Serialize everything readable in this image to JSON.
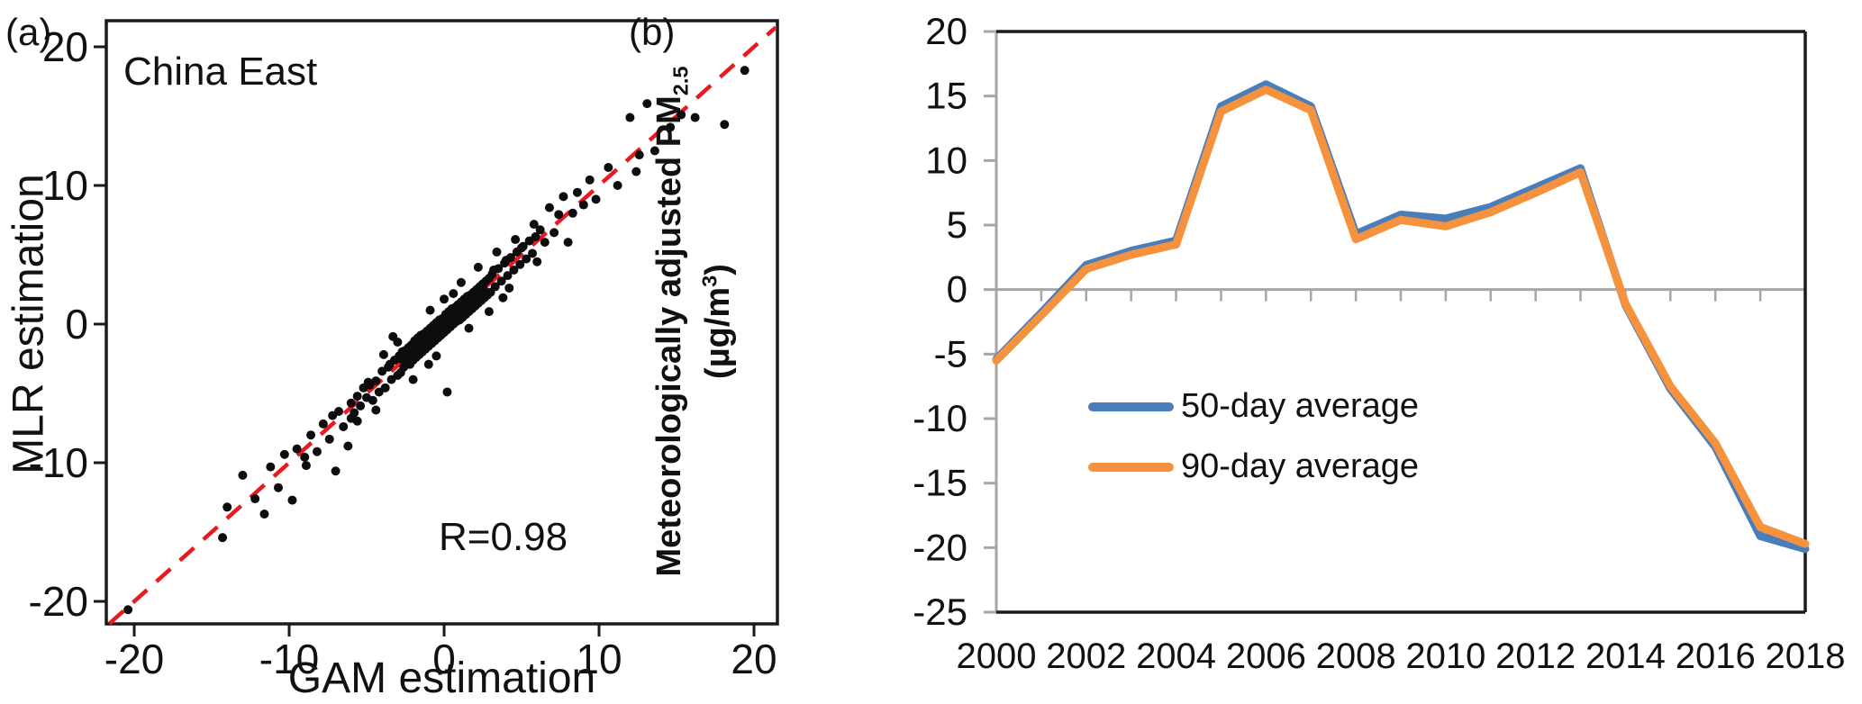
{
  "figure": {
    "panel_a_label": "(a)",
    "panel_b_label": "(b)"
  },
  "colors": {
    "frame_black": "#1a1a1a",
    "axis_gray": "#a6a6a6",
    "identity_red": "#e8191f",
    "series_blue": "#4a7ebb",
    "series_orange": "#f5923e",
    "point_black": "#0d0d0d"
  },
  "chart_data": [
    {
      "type": "scatter",
      "panel": "a",
      "region_label": "China East",
      "annotation_r": "R=0.98",
      "xlabel": "GAM estimation",
      "ylabel": "MLR estimation",
      "xlim": [
        -21.8,
        21.5
      ],
      "ylim": [
        -21.6,
        21.9
      ],
      "x_ticks": [
        -20,
        -10,
        0,
        10,
        20
      ],
      "y_ticks": [
        -20,
        -10,
        0,
        10,
        20
      ],
      "grid": false,
      "identity_line": {
        "style": "dashed",
        "color": "#e8191f",
        "from": -21.6,
        "to": 21.4
      },
      "point_color": "#0d0d0d",
      "points": [
        [
          -6,
          -5.7
        ],
        [
          -5.8,
          -6.4
        ],
        [
          -5.6,
          -5.2
        ],
        [
          -5.4,
          -5.9
        ],
        [
          -5.2,
          -4.6
        ],
        [
          -5,
          -5.3
        ],
        [
          -4.8,
          -4.4
        ],
        [
          -4.6,
          -5.5
        ],
        [
          -4.4,
          -4.1
        ],
        [
          -4.2,
          -4.9
        ],
        [
          -4,
          -3.4
        ],
        [
          -3.8,
          -4.6
        ],
        [
          -3.6,
          -3.1
        ],
        [
          -3.4,
          -4
        ],
        [
          -3.2,
          -2.6
        ],
        [
          -3,
          -3.7
        ],
        [
          -3.5,
          -2.9
        ],
        [
          -4.9,
          -4.2
        ],
        [
          -2.9,
          -2.3
        ],
        [
          -2.8,
          -3.5
        ],
        [
          -2.7,
          -2
        ],
        [
          -2.6,
          -3.1
        ],
        [
          -2.5,
          -1.9
        ],
        [
          -2.4,
          -2.8
        ],
        [
          -2.3,
          -1.7
        ],
        [
          -2.2,
          -2.9
        ],
        [
          -2.1,
          -1.5
        ],
        [
          -2,
          -2.6
        ],
        [
          -1.9,
          -1.2
        ],
        [
          -1.8,
          -2.4
        ],
        [
          -1.7,
          -1
        ],
        [
          -1.6,
          -2.2
        ],
        [
          -1.5,
          -0.8
        ],
        [
          -1.4,
          -2
        ],
        [
          -1.3,
          -0.7
        ],
        [
          -1.2,
          -1.8
        ],
        [
          -1.1,
          -0.5
        ],
        [
          -1,
          -1.6
        ],
        [
          -0.9,
          -0.3
        ],
        [
          -0.8,
          -1.4
        ],
        [
          -0.7,
          -0.1
        ],
        [
          -0.6,
          -1.2
        ],
        [
          -0.5,
          0.1
        ],
        [
          -0.4,
          -1
        ],
        [
          -0.3,
          0.3
        ],
        [
          -0.2,
          -0.8
        ],
        [
          -0.1,
          0.4
        ],
        [
          0,
          -0.6
        ],
        [
          0.1,
          0.7
        ],
        [
          0.2,
          -0.4
        ],
        [
          0.3,
          0.9
        ],
        [
          0.4,
          -0.2
        ],
        [
          0.5,
          1.1
        ],
        [
          0.6,
          0
        ],
        [
          0.7,
          1.2
        ],
        [
          0.8,
          0.2
        ],
        [
          0.9,
          1.4
        ],
        [
          1,
          0.3
        ],
        [
          1.1,
          1.6
        ],
        [
          1.2,
          0.5
        ],
        [
          1.3,
          1.8
        ],
        [
          1.4,
          0.7
        ],
        [
          1.5,
          2
        ],
        [
          1.6,
          0.9
        ],
        [
          1.7,
          2.1
        ],
        [
          1.8,
          1.1
        ],
        [
          1.9,
          2.3
        ],
        [
          2,
          1.3
        ],
        [
          2.1,
          2.5
        ],
        [
          2.2,
          1.5
        ],
        [
          2.3,
          2.7
        ],
        [
          2.4,
          1.7
        ],
        [
          2.5,
          2.9
        ],
        [
          2.6,
          1.9
        ],
        [
          2.7,
          3.1
        ],
        [
          2.8,
          2.1
        ],
        [
          2.9,
          3.3
        ],
        [
          3,
          2.3
        ],
        [
          3.1,
          3.6
        ],
        [
          3.3,
          2.7
        ],
        [
          3.5,
          4
        ],
        [
          3.7,
          3.1
        ],
        [
          3.9,
          4.4
        ],
        [
          4.1,
          3.5
        ],
        [
          4.3,
          4.8
        ],
        [
          4.5,
          3.9
        ],
        [
          4.7,
          5.2
        ],
        [
          4.9,
          4.3
        ],
        [
          5.1,
          5.6
        ],
        [
          5.3,
          4.7
        ],
        [
          5.5,
          6
        ],
        [
          5.7,
          5.1
        ],
        [
          5.9,
          6.3
        ],
        [
          4,
          4.6
        ],
        [
          3.2,
          3.9
        ],
        [
          5,
          5.5
        ],
        [
          -2.5,
          -2.4
        ],
        [
          -2.25,
          -2.5
        ],
        [
          -2,
          -1.8
        ],
        [
          -1.75,
          -2.1
        ],
        [
          -1.5,
          -1.3
        ],
        [
          -1.25,
          -1.6
        ],
        [
          -1,
          -0.8
        ],
        [
          -0.75,
          -1.1
        ],
        [
          -0.5,
          -0.4
        ],
        [
          -0.25,
          -0.6
        ],
        [
          0,
          0.1
        ],
        [
          0.25,
          -0.1
        ],
        [
          0.5,
          0.6
        ],
        [
          0.75,
          0.4
        ],
        [
          1,
          1.2
        ],
        [
          1.25,
          0.9
        ],
        [
          1.5,
          1.7
        ],
        [
          1.75,
          1.4
        ],
        [
          2,
          2.2
        ],
        [
          2.25,
          1.9
        ],
        [
          2.5,
          2.7
        ],
        [
          -2.6,
          -2.2
        ],
        [
          -2.2,
          -2
        ],
        [
          -1.8,
          -1.5
        ],
        [
          -1.4,
          -1.1
        ],
        [
          -1,
          -1.3
        ],
        [
          -0.6,
          -0.5
        ],
        [
          -0.2,
          0
        ],
        [
          0.2,
          0.4
        ],
        [
          0.6,
          0.8
        ],
        [
          1,
          0.7
        ],
        [
          1.4,
          1.5
        ],
        [
          1.8,
          1.6
        ],
        [
          2.2,
          2.4
        ],
        [
          2.6,
          2.4
        ],
        [
          -0.8,
          -0.9
        ],
        [
          -0.4,
          -0.2
        ],
        [
          0.4,
          0.1
        ],
        [
          0.8,
          1
        ],
        [
          1.2,
          1
        ],
        [
          1.6,
          1.3
        ],
        [
          -1.2,
          -0.9
        ],
        [
          -1.6,
          -1.9
        ],
        [
          -2.4,
          -2.7
        ],
        [
          -2.8,
          -2.5
        ],
        [
          -9.8,
          -12.7
        ],
        [
          -9.5,
          -9
        ],
        [
          -9,
          -9.6
        ],
        [
          -8.6,
          -8
        ],
        [
          -8.2,
          -9.2
        ],
        [
          -7.8,
          -7.2
        ],
        [
          -7.4,
          -8.3
        ],
        [
          -7,
          -10.6
        ],
        [
          -6.8,
          -6.3
        ],
        [
          -6.5,
          -7.4
        ],
        [
          -6.2,
          -8.8
        ],
        [
          -6,
          -6.8
        ],
        [
          -7.2,
          -6.6
        ],
        [
          -8.9,
          -10.2
        ],
        [
          6.2,
          6.8
        ],
        [
          6.5,
          5.9
        ],
        [
          6.8,
          8.4
        ],
        [
          7.1,
          6.6
        ],
        [
          7.4,
          7.9
        ],
        [
          7.7,
          9.2
        ],
        [
          8,
          5.9
        ],
        [
          8.3,
          8
        ],
        [
          8.6,
          9.5
        ],
        [
          9,
          8.6
        ],
        [
          9.4,
          10.4
        ],
        [
          9.8,
          9
        ],
        [
          -20.4,
          -20.6
        ],
        [
          -14.3,
          -15.4
        ],
        [
          -14,
          -13.2
        ],
        [
          -13,
          -10.9
        ],
        [
          -12.2,
          -12.6
        ],
        [
          -11.6,
          -13.7
        ],
        [
          -11.2,
          -10.3
        ],
        [
          -10.7,
          -11.8
        ],
        [
          -10.3,
          -9.4
        ],
        [
          10.6,
          11.3
        ],
        [
          11.2,
          10
        ],
        [
          12,
          14.9
        ],
        [
          12.6,
          12.2
        ],
        [
          13.1,
          15.9
        ],
        [
          13.6,
          12.5
        ],
        [
          14.6,
          14.2
        ],
        [
          15.3,
          15.1
        ],
        [
          16.2,
          14.9
        ],
        [
          18.1,
          14.4
        ],
        [
          19.4,
          18.3
        ],
        [
          12.4,
          11
        ],
        [
          3.4,
          5.2
        ],
        [
          2.2,
          4.1
        ],
        [
          1.1,
          3
        ],
        [
          -3.9,
          -2.2
        ],
        [
          4.6,
          6.1
        ],
        [
          0.6,
          2.2
        ],
        [
          -0.9,
          1
        ],
        [
          5.8,
          7.2
        ],
        [
          -4.4,
          -6.2
        ],
        [
          -5.6,
          -7
        ],
        [
          2.9,
          0.9
        ],
        [
          3.8,
          1.9
        ],
        [
          -2,
          -4
        ],
        [
          -1,
          -2.9
        ],
        [
          0,
          1.8
        ],
        [
          -0.5,
          -2.3
        ],
        [
          1.6,
          -0.3
        ],
        [
          4.2,
          2.6
        ],
        [
          -3,
          -1.3
        ],
        [
          6,
          4.5
        ],
        [
          -3.3,
          -0.9
        ],
        [
          0.2,
          -4.9
        ]
      ]
    },
    {
      "type": "line",
      "panel": "b",
      "ylabel_line1_pre": "Meteorologically adjusted PM",
      "ylabel_line1_sub": "2.5",
      "ylabel_line2_pre": "(µg/m",
      "ylabel_line2_sup": "3",
      "ylabel_line2_post": ")",
      "x": [
        2000,
        2001,
        2002,
        2003,
        2004,
        2005,
        2006,
        2007,
        2008,
        2009,
        2010,
        2011,
        2012,
        2013,
        2014,
        2015,
        2016,
        2017,
        2018
      ],
      "x_tick_labels": [
        "2000",
        "2002",
        "2004",
        "2006",
        "2008",
        "2010",
        "2012",
        "2014",
        "2016",
        "2018"
      ],
      "ylim": [
        -25,
        20
      ],
      "y_ticks": [
        20,
        15,
        10,
        5,
        0,
        -5,
        -10,
        -15,
        -20,
        -25
      ],
      "zero_line": true,
      "legend_position": "inside-lower-left",
      "series": [
        {
          "name": "50-day average",
          "color": "#4a7ebb",
          "values": [
            -5.4,
            -1.8,
            1.9,
            3.0,
            3.8,
            14.2,
            15.9,
            14.2,
            4.3,
            5.8,
            5.5,
            6.4,
            7.9,
            9.4,
            -1.2,
            -7.7,
            -12.2,
            -19.1,
            -20.1
          ]
        },
        {
          "name": "90-day average",
          "color": "#f5923e",
          "values": [
            -5.5,
            -2.0,
            1.6,
            2.7,
            3.5,
            13.8,
            15.5,
            13.9,
            3.9,
            5.4,
            4.9,
            6.0,
            7.5,
            9.1,
            -1.1,
            -7.5,
            -11.9,
            -18.4,
            -19.7
          ]
        }
      ]
    }
  ]
}
